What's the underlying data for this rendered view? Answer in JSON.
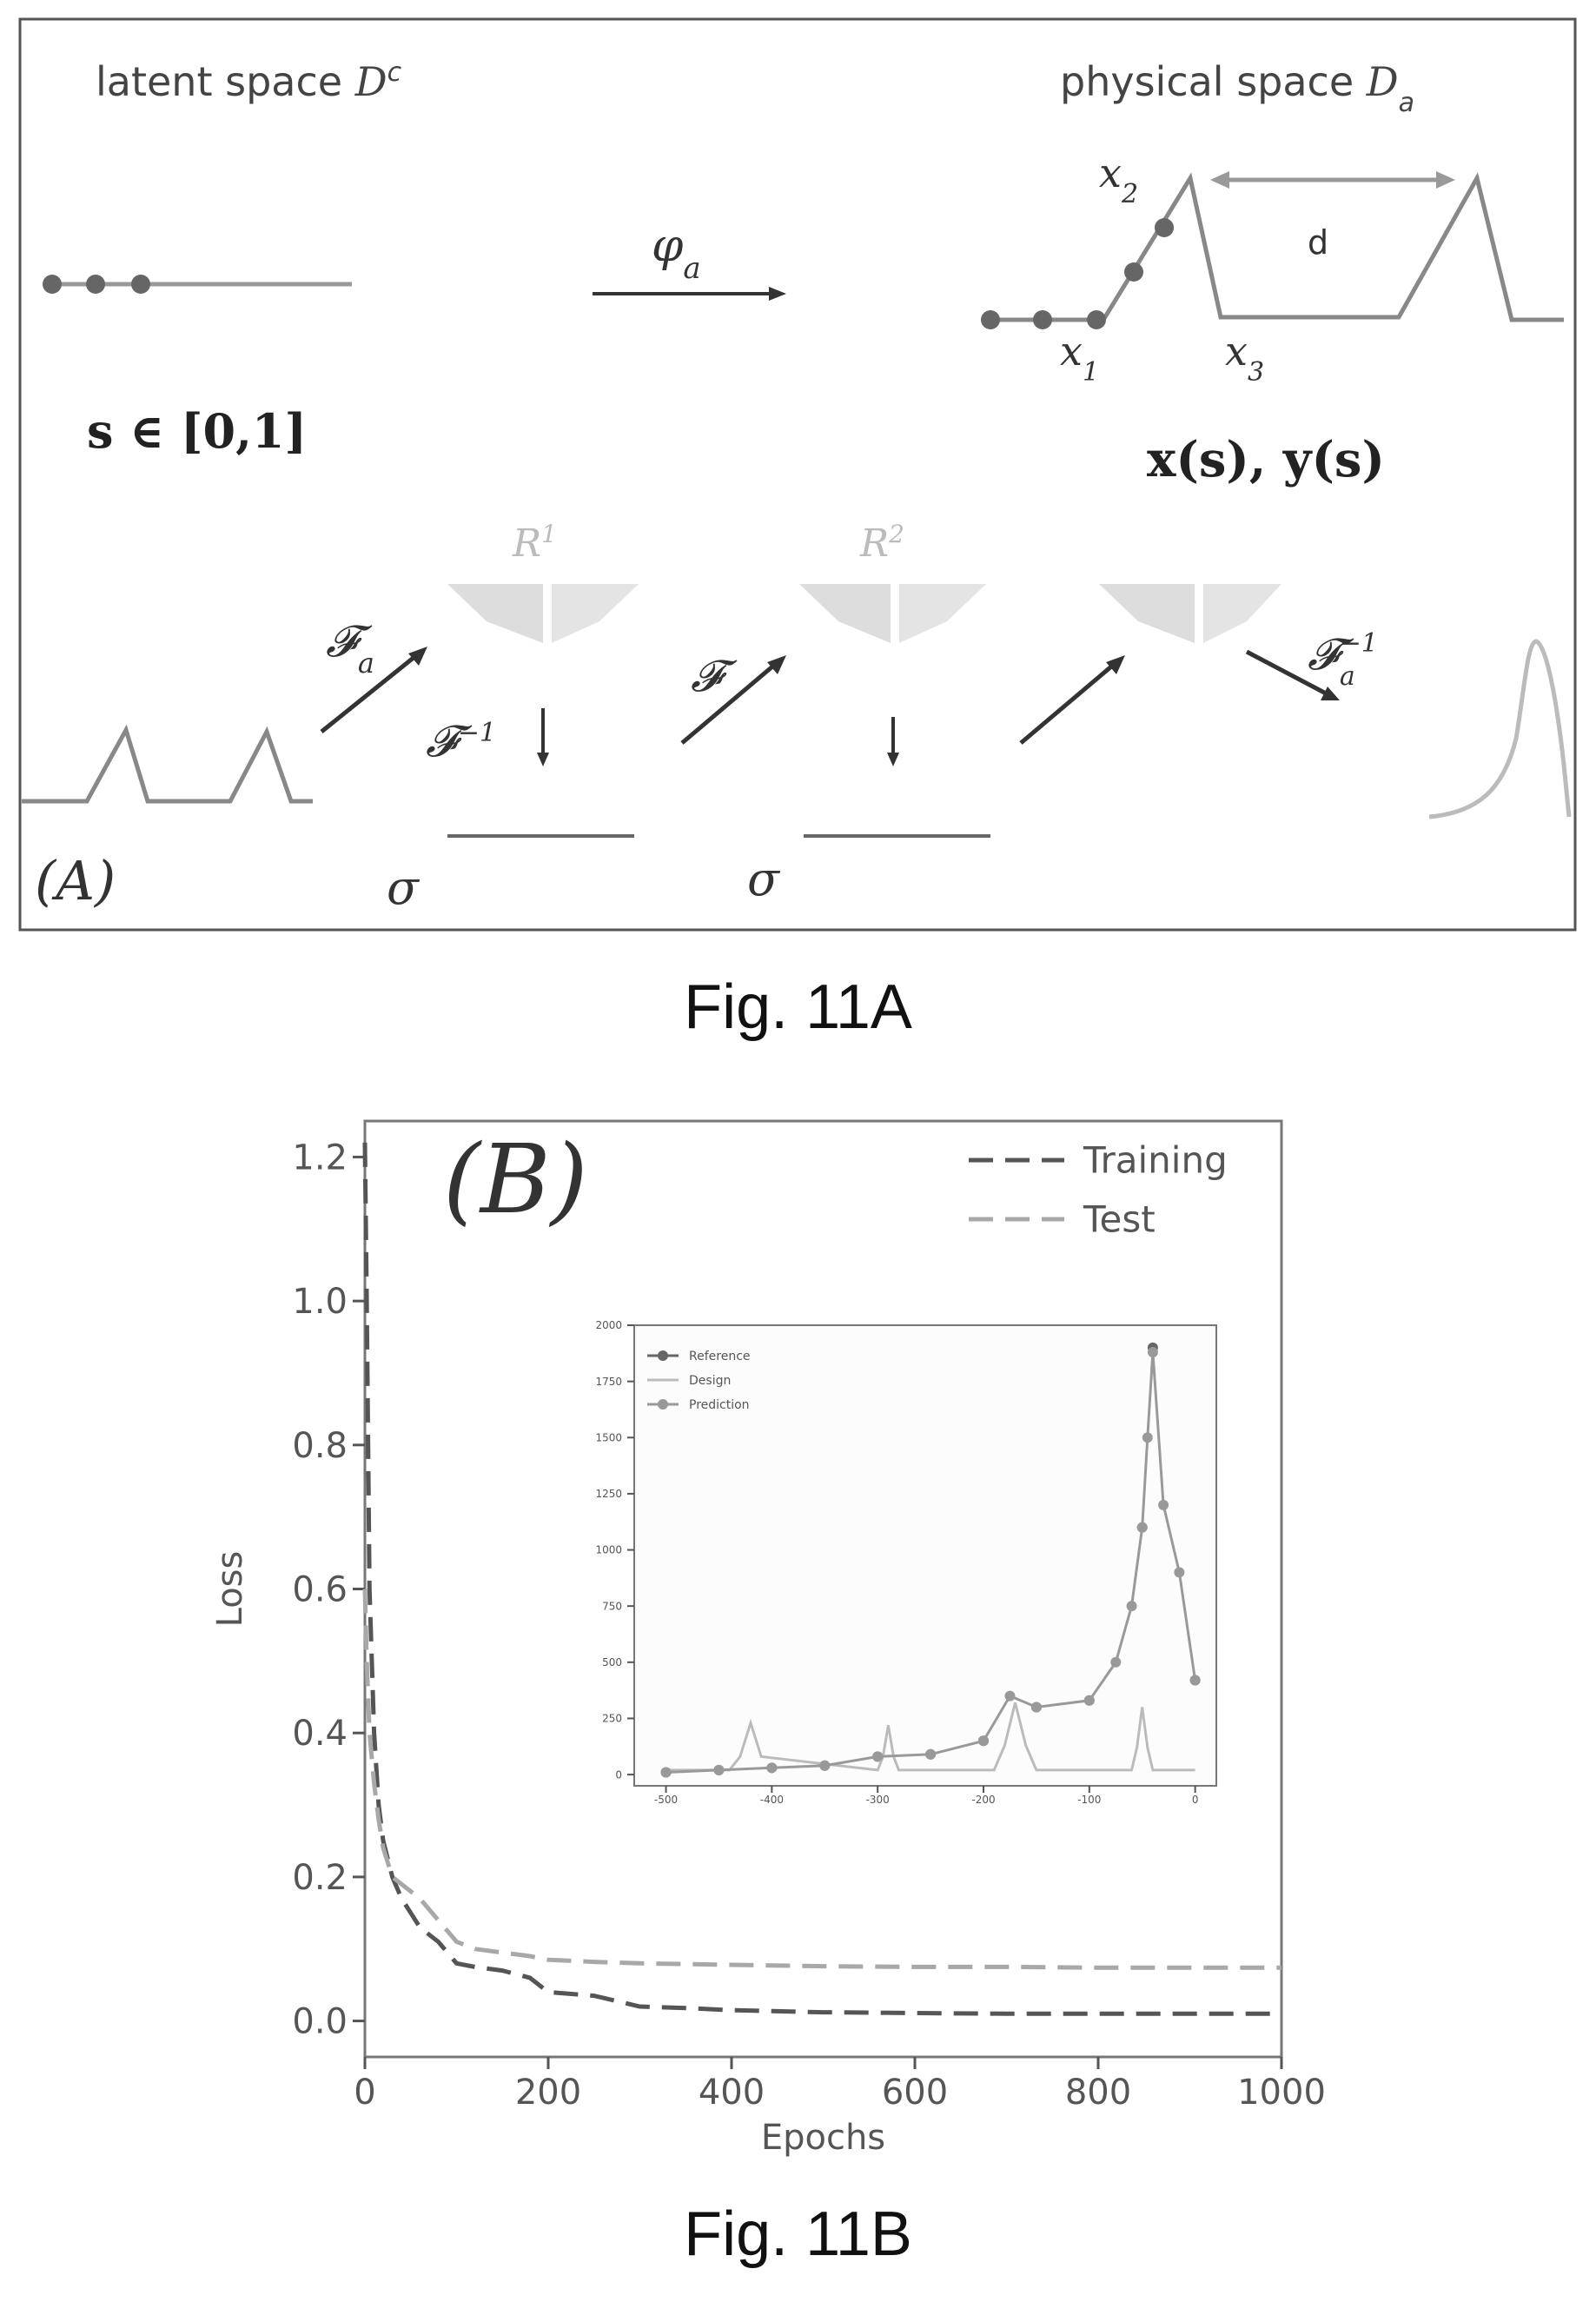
{
  "figure_a": {
    "latent_label_text": "latent  space ",
    "latent_symbol": "D",
    "latent_sup": "c",
    "physical_label_text": "physical space ",
    "physical_symbol": "D",
    "physical_sub": "a",
    "phi_label": "φ",
    "phi_sub": "a",
    "s_domain": "s ∈ [0,1]",
    "xy_label": "x(s), y(s)",
    "x1_label": "x",
    "x1_sub": "1",
    "x2_label": "x",
    "x2_sub": "2",
    "x3_label": "x",
    "x3_sub": "3",
    "d_label": "d",
    "R1_label": "R",
    "R1_sup": "1",
    "R2_label": "R",
    "R2_sup": "2",
    "Fa_label": "𝓕",
    "Fa_sub": "a",
    "Finv_label": "𝓕",
    "Finv_sup": "−1",
    "F_label": "𝓕",
    "Fainv_label": "𝓕",
    "Fainv_sub": "a",
    "Fainv_sup": "−1",
    "sigma1": "σ",
    "sigma2": "σ",
    "panel_label": "(A)",
    "caption": "Fig. 11A"
  },
  "figure_b": {
    "panel_label": "(B)",
    "caption": "Fig. 11B"
  },
  "chart_data": [
    {
      "type": "line",
      "title": "",
      "xlabel": "Epochs",
      "ylabel": "Loss",
      "xlim": [
        0,
        1000
      ],
      "ylim": [
        -0.05,
        1.25
      ],
      "xticks": [
        0,
        200,
        400,
        600,
        800,
        1000
      ],
      "yticks": [
        0.0,
        0.2,
        0.4,
        0.6,
        0.8,
        1.0,
        1.2
      ],
      "ytick_labels": [
        "0.0",
        "0.2",
        "0.4",
        "0.6",
        "0.8",
        "1.0",
        "1.2"
      ],
      "legend": "top-right",
      "series": [
        {
          "name": "Training",
          "style": "dashed",
          "color": "#555555",
          "x": [
            0,
            2,
            5,
            10,
            15,
            20,
            30,
            40,
            50,
            60,
            80,
            100,
            120,
            150,
            180,
            200,
            250,
            300,
            350,
            400,
            500,
            600,
            700,
            800,
            900,
            1000
          ],
          "y": [
            1.22,
            1.0,
            0.6,
            0.4,
            0.3,
            0.25,
            0.2,
            0.17,
            0.15,
            0.13,
            0.11,
            0.08,
            0.075,
            0.07,
            0.06,
            0.04,
            0.035,
            0.02,
            0.018,
            0.015,
            0.012,
            0.011,
            0.01,
            0.01,
            0.01,
            0.01
          ]
        },
        {
          "name": "Test",
          "style": "dashed",
          "color": "#a8a8a8",
          "x": [
            0,
            2,
            5,
            10,
            15,
            20,
            30,
            40,
            50,
            60,
            80,
            100,
            120,
            150,
            180,
            200,
            250,
            300,
            400,
            500,
            600,
            700,
            800,
            900,
            1000
          ],
          "y": [
            0.6,
            0.5,
            0.4,
            0.33,
            0.28,
            0.24,
            0.2,
            0.19,
            0.18,
            0.17,
            0.14,
            0.11,
            0.1,
            0.095,
            0.09,
            0.085,
            0.082,
            0.08,
            0.078,
            0.076,
            0.075,
            0.075,
            0.074,
            0.074,
            0.074
          ]
        }
      ]
    },
    {
      "type": "line",
      "title": "",
      "xlabel": "",
      "ylabel": "",
      "xlim": [
        -530,
        20
      ],
      "ylim": [
        -50,
        2000
      ],
      "xticks": [
        -500,
        -400,
        -300,
        -200,
        -100,
        0
      ],
      "ytick_labels": [
        "0",
        "250",
        "500",
        "750",
        "1000",
        "1250",
        "1500",
        "1750",
        "2000"
      ],
      "yticks": [
        0,
        250,
        500,
        750,
        1000,
        1250,
        1500,
        1750,
        2000
      ],
      "legend": "top-left",
      "series": [
        {
          "name": "Reference",
          "style": "markers",
          "color": "#666666",
          "x": [
            -500,
            -450,
            -400,
            -350,
            -300,
            -250,
            -200,
            -150,
            -100,
            -50,
            -40,
            0
          ],
          "y": [
            10,
            20,
            30,
            40,
            80,
            90,
            150,
            300,
            330,
            1100,
            1900,
            420
          ]
        },
        {
          "name": "Design",
          "style": "solid",
          "color": "#bbbbbb",
          "x": [
            -500,
            -440,
            -430,
            -420,
            -410,
            -300,
            -295,
            -290,
            -285,
            -280,
            -190,
            -180,
            -170,
            -160,
            -150,
            -60,
            -55,
            -50,
            -45,
            -40,
            0
          ],
          "y": [
            20,
            20,
            80,
            230,
            80,
            20,
            80,
            220,
            80,
            20,
            20,
            130,
            320,
            130,
            20,
            20,
            120,
            300,
            120,
            20,
            20
          ]
        },
        {
          "name": "Prediction",
          "style": "solid-markers",
          "color": "#999999",
          "x": [
            -500,
            -450,
            -400,
            -350,
            -300,
            -250,
            -200,
            -175,
            -150,
            -100,
            -75,
            -60,
            -50,
            -45,
            -40,
            -30,
            -15,
            0
          ],
          "y": [
            10,
            20,
            30,
            40,
            80,
            90,
            150,
            350,
            300,
            330,
            500,
            750,
            1100,
            1500,
            1880,
            1200,
            900,
            420
          ]
        }
      ]
    }
  ]
}
